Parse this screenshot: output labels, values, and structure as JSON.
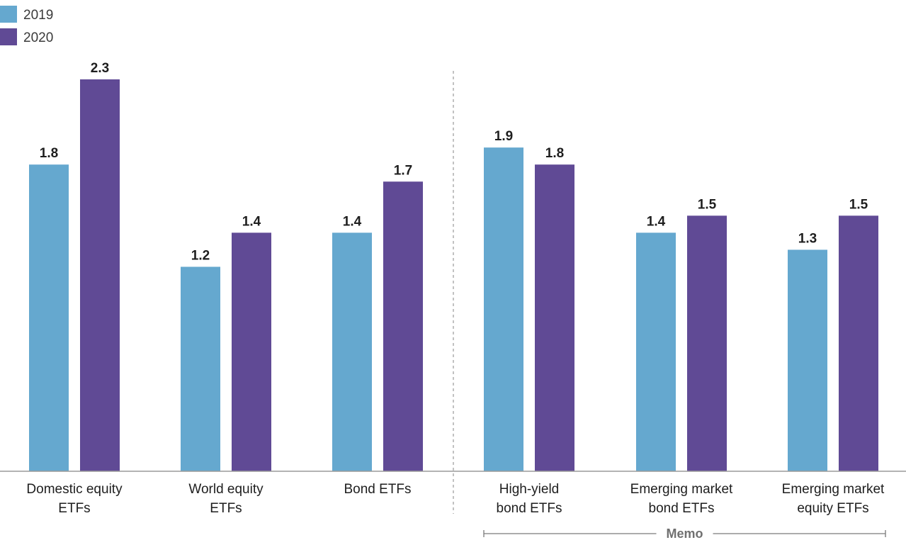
{
  "chart_data": {
    "type": "bar",
    "categories": [
      [
        "Domestic equity",
        "ETFs"
      ],
      [
        "World equity",
        "ETFs"
      ],
      [
        "Bond ETFs"
      ],
      [
        "High-yield",
        "bond ETFs"
      ],
      [
        "Emerging market",
        "bond ETFs"
      ],
      [
        "Emerging market",
        "equity ETFs"
      ]
    ],
    "series": [
      {
        "name": "2019",
        "color": "#65a8cf",
        "values": [
          1.8,
          1.2,
          1.4,
          1.9,
          1.4,
          1.3
        ]
      },
      {
        "name": "2020",
        "color": "#604a95",
        "values": [
          2.3,
          1.4,
          1.7,
          1.8,
          1.5,
          1.5
        ]
      }
    ],
    "ylim": [
      0,
      2.3
    ],
    "legend_position": "top-left",
    "grid": false,
    "separator_after_category": 2,
    "memo": {
      "label": "Memo",
      "covers_categories": [
        3,
        4,
        5
      ]
    }
  }
}
